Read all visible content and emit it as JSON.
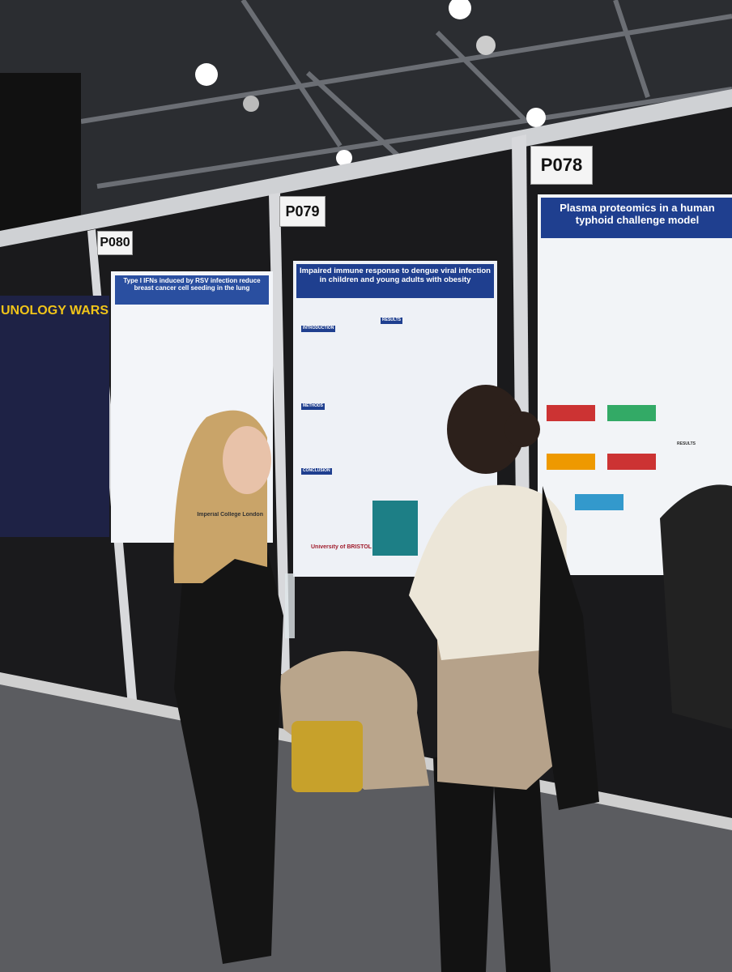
{
  "signs": [
    "P080",
    "P079",
    "P078"
  ],
  "posters": [
    {
      "title": "UNOLOGY WARS"
    },
    {
      "title": "Type I IFNs induced by RSV infection reduce breast cancer cell seeding in the lung",
      "footer": "Imperial College London"
    },
    {
      "title": "Impaired immune response to dengue viral infection in children and young adults with obesity",
      "sections": [
        "INTRODUCTION",
        "RESULTS",
        "METHODS",
        "CONCLUSION"
      ],
      "footer": "University of BRISTOL"
    },
    {
      "title": "Plasma proteomics in a human typhoid challenge model",
      "sections": [
        "RESULTS"
      ]
    }
  ]
}
